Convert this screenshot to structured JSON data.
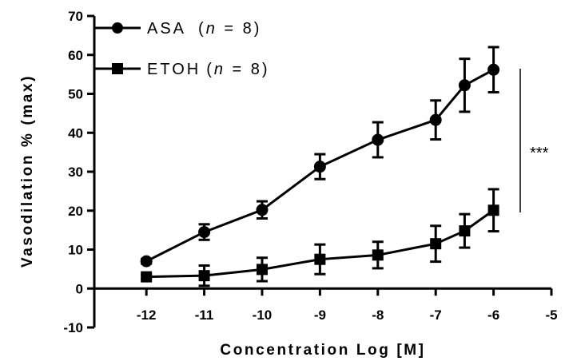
{
  "chart_data": {
    "type": "line",
    "xlabel": "Concentration Log [M]",
    "ylabel": "Vasodilation % (max)",
    "xlim": [
      -12.9,
      -5
    ],
    "ylim": [
      -10,
      70
    ],
    "x_ticks": [
      "-12",
      "-11",
      "-10",
      "-9",
      "-8",
      "-7",
      "-6",
      "-5"
    ],
    "y_ticks": [
      "-10",
      "0",
      "10",
      "20",
      "30",
      "40",
      "50",
      "60",
      "70"
    ],
    "grid": false,
    "legend_position": "top-left",
    "series": [
      {
        "name_main": "ASA",
        "name_n": "n",
        "name_tail": " = 8)",
        "marker": "circle",
        "x": [
          -12,
          -11,
          -10,
          -9,
          -8,
          -7,
          -6.5,
          -6
        ],
        "y": [
          7,
          14.5,
          20.2,
          31.3,
          38.2,
          43.3,
          52.2,
          56.2
        ],
        "error": [
          0.6,
          2.0,
          2.2,
          3.2,
          4.5,
          5.0,
          6.8,
          5.8
        ]
      },
      {
        "name_main": "ETOH",
        "name_n": "n",
        "name_tail": " = 8)",
        "marker": "square",
        "x": [
          -12,
          -11,
          -10,
          -9,
          -8,
          -7,
          -6.5,
          -6
        ],
        "y": [
          3.0,
          3.3,
          4.9,
          7.5,
          8.6,
          11.5,
          14.8,
          20.1
        ],
        "error": [
          0.5,
          2.6,
          3.0,
          3.8,
          3.4,
          4.6,
          4.3,
          5.4
        ]
      }
    ],
    "annotation": "***"
  }
}
